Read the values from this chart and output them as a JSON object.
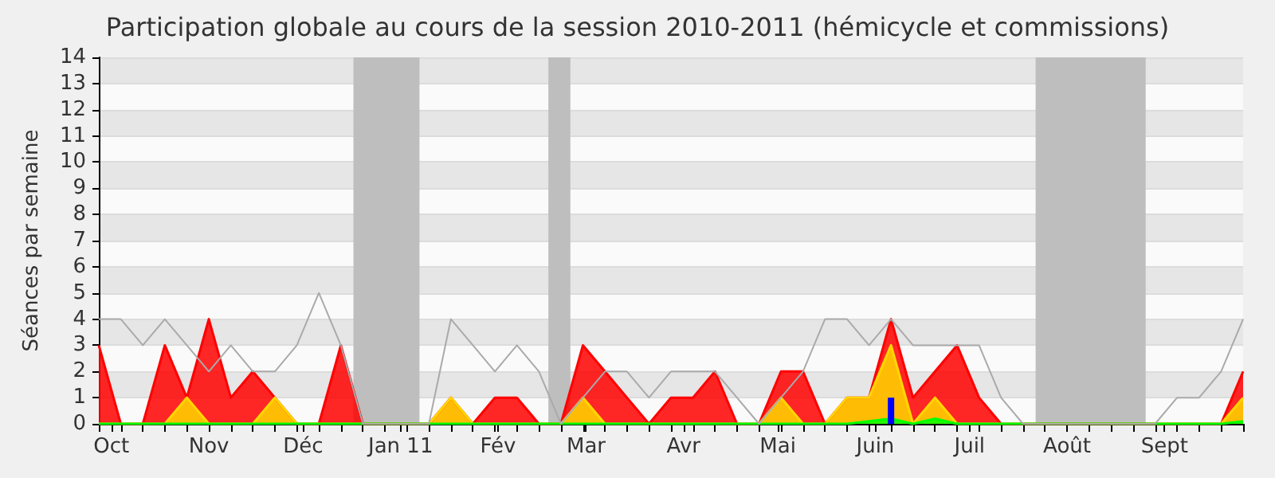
{
  "chart_data": {
    "type": "area",
    "title": "Participation globale au cours de la session 2010-2011 (hémicycle et commissions)",
    "ylabel": "Séances par semaine",
    "x": [
      "2010-09-27",
      "2010-10-04",
      "2010-10-11",
      "2010-10-18",
      "2010-10-25",
      "2010-11-01",
      "2010-11-08",
      "2010-11-15",
      "2010-11-22",
      "2010-11-29",
      "2010-12-06",
      "2010-12-13",
      "2010-12-20",
      "2010-12-27",
      "2011-01-03",
      "2011-01-10",
      "2011-01-17",
      "2011-01-24",
      "2011-01-31",
      "2011-02-07",
      "2011-02-14",
      "2011-02-21",
      "2011-02-28",
      "2011-03-07",
      "2011-03-14",
      "2011-03-21",
      "2011-03-28",
      "2011-04-04",
      "2011-04-11",
      "2011-04-18",
      "2011-04-25",
      "2011-05-02",
      "2011-05-09",
      "2011-05-16",
      "2011-05-23",
      "2011-05-30",
      "2011-06-06",
      "2011-06-13",
      "2011-06-20",
      "2011-06-27",
      "2011-07-04",
      "2011-07-11",
      "2011-07-18",
      "2011-07-25",
      "2011-08-01",
      "2011-08-08",
      "2011-08-15",
      "2011-08-22",
      "2011-08-29",
      "2011-09-05",
      "2011-09-12",
      "2011-09-19",
      "2011-09-26"
    ],
    "series": [
      {
        "color": "#ff0000",
        "values": [
          3,
          0,
          0,
          3,
          1,
          4,
          1,
          2,
          1,
          0,
          0,
          3,
          0,
          0,
          0,
          0,
          1,
          0,
          1,
          1,
          0,
          0,
          3,
          2,
          1,
          0,
          1,
          1,
          2,
          0,
          0,
          2,
          2,
          0,
          1,
          1,
          4,
          1,
          2,
          3,
          1,
          0,
          0,
          0,
          0,
          0,
          0,
          0,
          0,
          0,
          0,
          0,
          2
        ]
      },
      {
        "color": "#ffd700",
        "values": [
          0,
          0,
          0,
          0,
          1,
          0,
          0,
          0,
          1,
          0,
          0,
          0,
          0,
          0,
          0,
          0,
          1,
          0,
          0,
          0,
          0,
          0,
          1,
          0,
          0,
          0,
          0,
          0,
          0,
          0,
          0,
          1,
          0,
          0,
          1,
          1,
          3,
          0,
          1,
          0,
          0,
          0,
          0,
          0,
          0,
          0,
          0,
          0,
          0,
          0,
          0,
          0,
          1
        ]
      },
      {
        "color": "#00ff00",
        "values": [
          0,
          0,
          0,
          0,
          0,
          0,
          0,
          0,
          0,
          0,
          0,
          0,
          0,
          0,
          0,
          0,
          0,
          0,
          0,
          0,
          0,
          0,
          0,
          0,
          0,
          0,
          0,
          0,
          0,
          0,
          0,
          0,
          0,
          0,
          0,
          0.1,
          0.2,
          0,
          0.2,
          0,
          0,
          0,
          0,
          0,
          0,
          0,
          0,
          0,
          0,
          0,
          0,
          0,
          0.1
        ]
      },
      {
        "type": "bar",
        "color": "#0000ff",
        "values": [
          null,
          null,
          null,
          null,
          null,
          null,
          null,
          null,
          null,
          null,
          null,
          null,
          null,
          null,
          null,
          null,
          null,
          null,
          null,
          null,
          null,
          null,
          null,
          null,
          null,
          null,
          null,
          null,
          null,
          null,
          null,
          null,
          null,
          null,
          null,
          null,
          1,
          null,
          null,
          null,
          null,
          null,
          null,
          null,
          null,
          null,
          null,
          null,
          null,
          null,
          null,
          null,
          null
        ]
      },
      {
        "type": "line",
        "color": "#aaaaaa",
        "values": [
          4,
          4,
          3,
          4,
          3,
          2,
          3,
          2,
          2,
          3,
          5,
          3,
          0,
          0,
          0,
          0,
          4,
          3,
          2,
          3,
          2,
          0,
          1,
          2,
          2,
          1,
          2,
          2,
          2,
          1,
          0,
          1,
          2,
          4,
          4,
          3,
          4,
          3,
          3,
          3,
          3,
          1,
          0,
          0,
          0,
          0,
          0,
          0,
          0,
          1,
          1,
          2,
          4
        ]
      }
    ],
    "xlim": [
      "2010-09-27",
      "2011-09-26"
    ],
    "xticks": [
      {
        "value": "2010-10-01",
        "label": "Oct"
      },
      {
        "value": "2010-11-01",
        "label": "Nov"
      },
      {
        "value": "2010-12-01",
        "label": "Déc"
      },
      {
        "value": "2011-01-01",
        "label": "Jan 11"
      },
      {
        "value": "2011-02-01",
        "label": "Fév"
      },
      {
        "value": "2011-03-01",
        "label": "Mar"
      },
      {
        "value": "2011-04-01",
        "label": "Avr"
      },
      {
        "value": "2011-05-01",
        "label": "Mai"
      },
      {
        "value": "2011-06-01",
        "label": "Juin"
      },
      {
        "value": "2011-07-01",
        "label": "Juil"
      },
      {
        "value": "2011-08-01",
        "label": "Août"
      },
      {
        "value": "2011-09-01",
        "label": "Sept"
      }
    ],
    "ylim": [
      0,
      14
    ],
    "yticks": [
      0,
      1,
      2,
      3,
      4,
      5,
      6,
      7,
      8,
      9,
      10,
      11,
      12,
      13,
      14
    ],
    "grid": "y",
    "marker": "none",
    "bands": [
      {
        "axis": "x",
        "from": "2010-12-17",
        "to": "2011-01-07",
        "color": "#bebebe"
      },
      {
        "axis": "x",
        "from": "2011-02-17",
        "to": "2011-02-24",
        "color": "#bebebe"
      },
      {
        "axis": "x",
        "from": "2011-07-22",
        "to": "2011-08-26",
        "color": "#bebebe"
      }
    ]
  }
}
